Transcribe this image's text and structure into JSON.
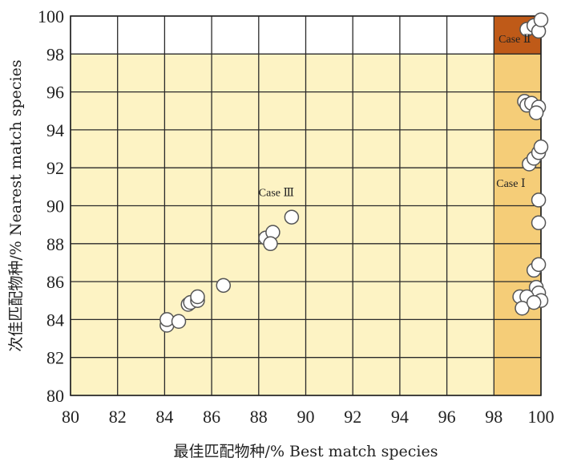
{
  "chart_data": {
    "type": "scatter",
    "title": "",
    "xlabel": "最佳匹配物种/% Best match species",
    "ylabel": "次佳匹配物种/% Nearest match species",
    "xlim": [
      80,
      100
    ],
    "ylim": [
      80,
      100
    ],
    "xticks": [
      "80",
      "82",
      "84",
      "86",
      "88",
      "90",
      "92",
      "94",
      "96",
      "98",
      "100"
    ],
    "yticks": [
      "80",
      "82",
      "84",
      "86",
      "88",
      "90",
      "92",
      "94",
      "96",
      "98",
      "100"
    ],
    "grid": true,
    "regions": [
      {
        "label": "",
        "x": [
          80,
          98
        ],
        "y": [
          80,
          98
        ],
        "color": "#fdf3c4"
      },
      {
        "label": "Case Ⅰ",
        "x": [
          98,
          100
        ],
        "y": [
          80,
          98
        ],
        "color": "#f5cd78"
      },
      {
        "label": "Case Ⅱ",
        "x": [
          98,
          100
        ],
        "y": [
          98,
          100
        ],
        "color": "#bf5a18"
      },
      {
        "label": "Case Ⅲ",
        "x": [
          80,
          98
        ],
        "y": [
          80,
          98
        ],
        "color": "#fdf3c4"
      }
    ],
    "annotations": [
      {
        "text": "Case Ⅱ",
        "x": 98.2,
        "y": 98.6
      },
      {
        "text": "Case Ⅰ",
        "x": 98.1,
        "y": 91.0
      },
      {
        "text": "Case Ⅲ",
        "x": 88.0,
        "y": 90.5
      }
    ],
    "series": [
      {
        "marker_fill": "#ffffff",
        "marker_edge": "#555555",
        "points": [
          [
            84.1,
            83.7
          ],
          [
            84.1,
            84.0
          ],
          [
            84.6,
            83.9
          ],
          [
            85.0,
            84.8
          ],
          [
            85.1,
            84.9
          ],
          [
            85.4,
            85.0
          ],
          [
            85.4,
            85.2
          ],
          [
            86.5,
            85.8
          ],
          [
            88.3,
            88.3
          ],
          [
            88.6,
            88.6
          ],
          [
            88.5,
            88.0
          ],
          [
            89.4,
            89.4
          ],
          [
            99.4,
            99.3
          ],
          [
            99.7,
            99.5
          ],
          [
            99.9,
            99.2
          ],
          [
            100.0,
            99.8
          ],
          [
            99.3,
            95.5
          ],
          [
            99.4,
            95.3
          ],
          [
            99.6,
            95.4
          ],
          [
            99.9,
            95.2
          ],
          [
            99.8,
            94.9
          ],
          [
            99.5,
            92.2
          ],
          [
            99.7,
            92.5
          ],
          [
            99.9,
            92.8
          ],
          [
            100.0,
            93.1
          ],
          [
            99.9,
            90.3
          ],
          [
            99.9,
            89.1
          ],
          [
            99.7,
            86.6
          ],
          [
            99.9,
            86.9
          ],
          [
            99.8,
            85.7
          ],
          [
            99.9,
            85.4
          ],
          [
            99.1,
            85.2
          ],
          [
            99.4,
            85.2
          ],
          [
            99.2,
            84.6
          ],
          [
            100.0,
            85.0
          ],
          [
            99.7,
            84.9
          ]
        ]
      }
    ]
  }
}
